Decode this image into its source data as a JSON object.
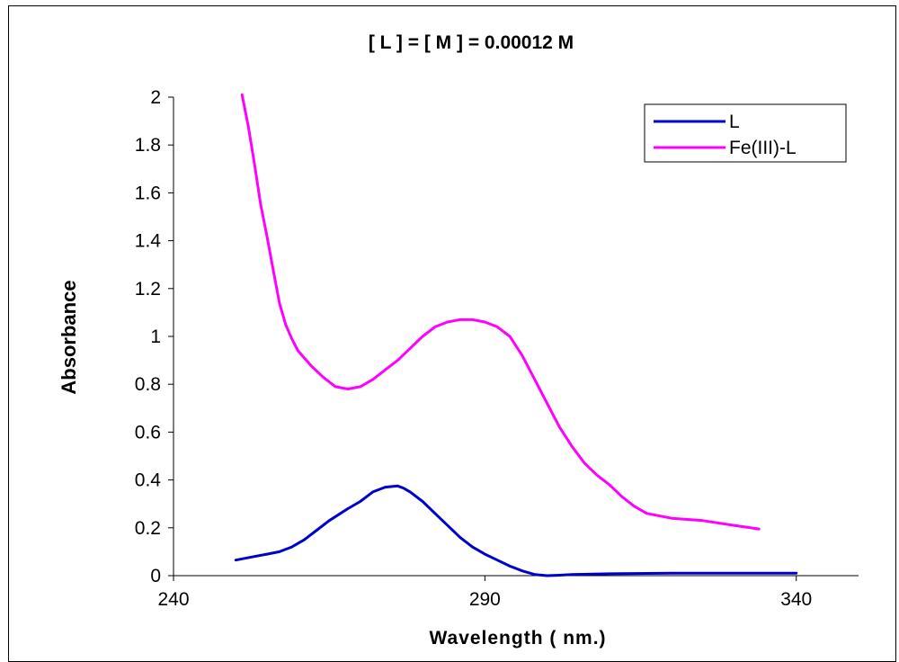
{
  "chart_data": {
    "type": "line",
    "title": "[ L ] = [ M ] = 0.00012 M",
    "xlabel": "Wavelength ( nm.)",
    "ylabel": "Absorbance",
    "xlim": [
      240,
      350
    ],
    "ylim": [
      0,
      2
    ],
    "x_ticks": [
      240,
      290,
      340
    ],
    "y_ticks": [
      0,
      0.2,
      0.4,
      0.6,
      0.8,
      1,
      1.2,
      1.4,
      1.6,
      1.8,
      2
    ],
    "grid": false,
    "legend_position": "top-right",
    "series": [
      {
        "name": "L",
        "color": "#0000cc",
        "points": [
          [
            250,
            0.065
          ],
          [
            253,
            0.08
          ],
          [
            255,
            0.09
          ],
          [
            257,
            0.1
          ],
          [
            259,
            0.12
          ],
          [
            261,
            0.15
          ],
          [
            263,
            0.19
          ],
          [
            265,
            0.23
          ],
          [
            268,
            0.28
          ],
          [
            270,
            0.31
          ],
          [
            272,
            0.35
          ],
          [
            274,
            0.37
          ],
          [
            276,
            0.375
          ],
          [
            277,
            0.365
          ],
          [
            278,
            0.35
          ],
          [
            280,
            0.31
          ],
          [
            282,
            0.26
          ],
          [
            284,
            0.21
          ],
          [
            286,
            0.16
          ],
          [
            288,
            0.12
          ],
          [
            290,
            0.09
          ],
          [
            292,
            0.065
          ],
          [
            294,
            0.04
          ],
          [
            296,
            0.02
          ],
          [
            298,
            0.005
          ],
          [
            300,
            0.0
          ],
          [
            302,
            0.002
          ],
          [
            304,
            0.005
          ],
          [
            310,
            0.008
          ],
          [
            320,
            0.01
          ],
          [
            330,
            0.01
          ],
          [
            340,
            0.01
          ]
        ]
      },
      {
        "name": "Fe(III)-L",
        "color": "#ff00ff",
        "points": [
          [
            251,
            2.01
          ],
          [
            252,
            1.88
          ],
          [
            253,
            1.72
          ],
          [
            254,
            1.55
          ],
          [
            255,
            1.42
          ],
          [
            256,
            1.28
          ],
          [
            257,
            1.14
          ],
          [
            258,
            1.05
          ],
          [
            259,
            0.99
          ],
          [
            260,
            0.94
          ],
          [
            262,
            0.88
          ],
          [
            264,
            0.83
          ],
          [
            266,
            0.79
          ],
          [
            268,
            0.78
          ],
          [
            270,
            0.79
          ],
          [
            272,
            0.82
          ],
          [
            274,
            0.86
          ],
          [
            276,
            0.9
          ],
          [
            278,
            0.95
          ],
          [
            280,
            1.0
          ],
          [
            282,
            1.04
          ],
          [
            284,
            1.06
          ],
          [
            286,
            1.07
          ],
          [
            288,
            1.07
          ],
          [
            290,
            1.06
          ],
          [
            292,
            1.04
          ],
          [
            294,
            1.0
          ],
          [
            296,
            0.92
          ],
          [
            298,
            0.82
          ],
          [
            300,
            0.72
          ],
          [
            302,
            0.62
          ],
          [
            304,
            0.54
          ],
          [
            306,
            0.47
          ],
          [
            308,
            0.42
          ],
          [
            310,
            0.38
          ],
          [
            312,
            0.33
          ],
          [
            314,
            0.29
          ],
          [
            316,
            0.26
          ],
          [
            320,
            0.24
          ],
          [
            325,
            0.23
          ],
          [
            330,
            0.21
          ],
          [
            334,
            0.195
          ]
        ]
      }
    ]
  }
}
